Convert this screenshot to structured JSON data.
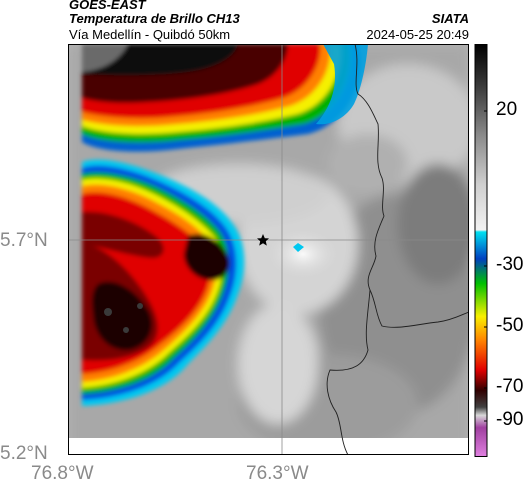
{
  "header": {
    "satellite": "GOES-EAST",
    "product": "Temperatura de Brillo CH13",
    "route": "Vía Medellín - Quibdó 50km",
    "agency": "SIATA",
    "datetime": "2024-05-25 20:49"
  },
  "axes": {
    "y_ticks": [
      "5.7°N",
      "5.2°N"
    ],
    "x_ticks": [
      "76.8°W",
      "76.3°W"
    ]
  },
  "colorbar": {
    "ticks": [
      "20",
      "-30",
      "-50",
      "-70",
      "-90"
    ]
  },
  "colors": {
    "cold_core": "#1a0505",
    "red": "#e00000",
    "orange": "#ff8000",
    "yellow": "#f5f000",
    "green": "#00b000",
    "blue": "#0050e0",
    "cyan": "#00c8f0",
    "warm_gray": "#c8c8c8"
  },
  "map": {
    "marker_icon": "star-icon"
  }
}
